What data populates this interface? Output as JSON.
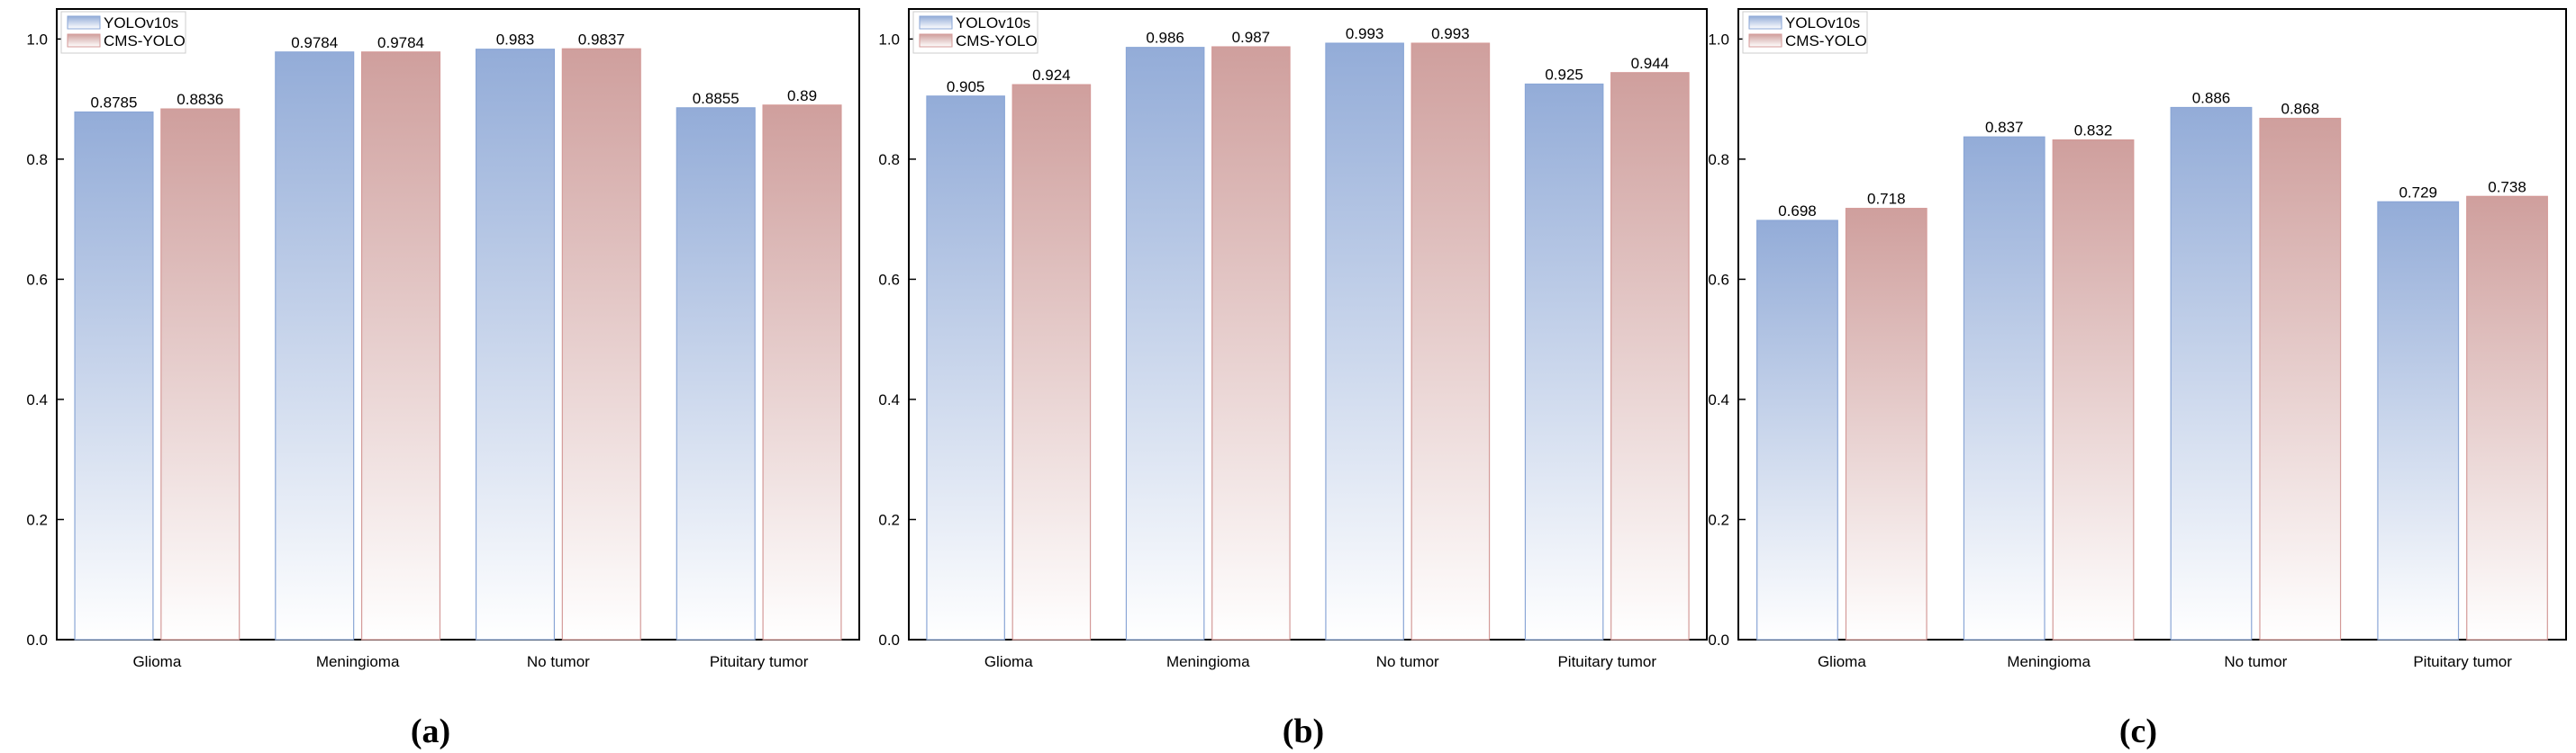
{
  "chart_data": [
    {
      "type": "bar",
      "panel_label": "(a)",
      "categories": [
        "Glioma",
        "Meningioma",
        "No tumor",
        "Pituitary tumor"
      ],
      "series": [
        {
          "name": "YOLOv10s",
          "values": [
            0.8785,
            0.9784,
            0.983,
            0.8855
          ],
          "labels": [
            "0.8785",
            "0.9784",
            "0.983",
            "0.8855"
          ]
        },
        {
          "name": "CMS-YOLO",
          "values": [
            0.8836,
            0.9784,
            0.9837,
            0.89
          ],
          "labels": [
            "0.8836",
            "0.9784",
            "0.9837",
            "0.89"
          ]
        }
      ],
      "ylim": [
        0,
        1.0
      ],
      "yticks": [
        "0.0",
        "0.2",
        "0.4",
        "0.6",
        "0.8",
        "1.0"
      ],
      "legend": "top-left",
      "grid": false
    },
    {
      "type": "bar",
      "panel_label": "(b)",
      "categories": [
        "Glioma",
        "Meningioma",
        "No tumor",
        "Pituitary tumor"
      ],
      "series": [
        {
          "name": "YOLOv10s",
          "values": [
            0.905,
            0.986,
            0.993,
            0.925
          ],
          "labels": [
            "0.905",
            "0.986",
            "0.993",
            "0.925"
          ]
        },
        {
          "name": "CMS-YOLO",
          "values": [
            0.924,
            0.987,
            0.993,
            0.944
          ],
          "labels": [
            "0.924",
            "0.987",
            "0.993",
            "0.944"
          ]
        }
      ],
      "ylim": [
        0,
        1.0
      ],
      "yticks": [
        "0.0",
        "0.2",
        "0.4",
        "0.6",
        "0.8",
        "1.0"
      ],
      "legend": "top-left",
      "grid": false
    },
    {
      "type": "bar",
      "panel_label": "(c)",
      "categories": [
        "Glioma",
        "Meningioma",
        "No tumor",
        "Pituitary tumor"
      ],
      "series": [
        {
          "name": "YOLOv10s",
          "values": [
            0.698,
            0.837,
            0.886,
            0.729
          ],
          "labels": [
            "0.698",
            "0.837",
            "0.886",
            "0.729"
          ]
        },
        {
          "name": "CMS-YOLO",
          "values": [
            0.718,
            0.832,
            0.868,
            0.738
          ],
          "labels": [
            "0.718",
            "0.832",
            "0.868",
            "0.738"
          ]
        }
      ],
      "ylim": [
        0,
        1.0
      ],
      "yticks": [
        "0.0",
        "0.2",
        "0.4",
        "0.6",
        "0.8",
        "1.0"
      ],
      "legend": "top-left",
      "grid": false
    }
  ],
  "colors": {
    "yolo_top": "#93acd8",
    "yolo_bottom": "#ffffff",
    "yolo_edge": "#8aa6d6",
    "cms_top": "#cf9f9d",
    "cms_bottom": "#ffffff",
    "cms_edge": "#d49a98"
  }
}
